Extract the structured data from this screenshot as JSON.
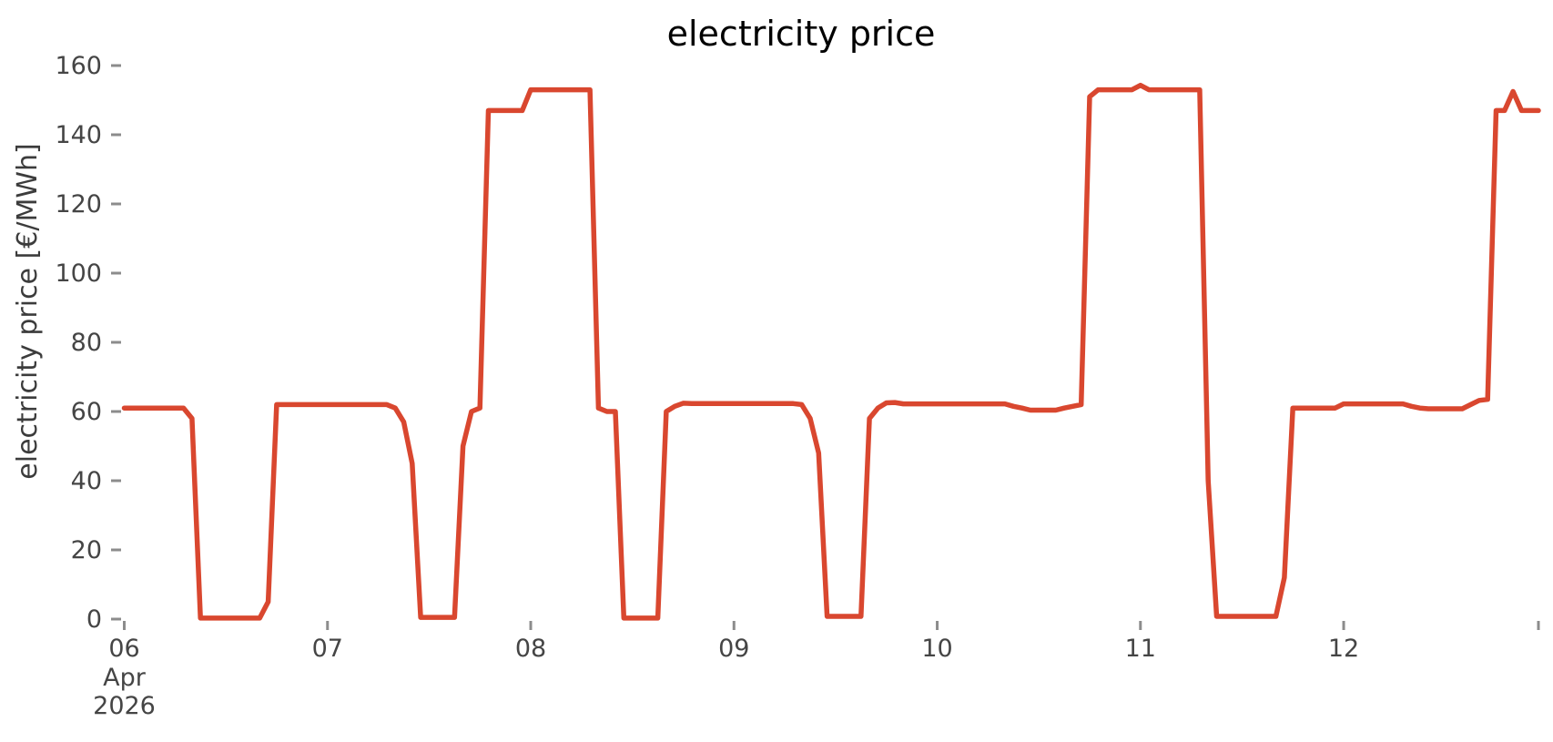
{
  "chart_data": {
    "type": "line",
    "title": "electricity price",
    "ylabel": "electricity price [€/MWh]",
    "xlabel": "",
    "grid": false,
    "legend": "none",
    "background": "#ffffff",
    "x_start": "2026-04-06T00:00",
    "x_freq": "1h",
    "n_points": 168,
    "x_axis": {
      "major_tick_hours": [
        0,
        24,
        48,
        72,
        96,
        120,
        144
      ],
      "major_tick_labels": [
        "06",
        "07",
        "08",
        "09",
        "10",
        "11",
        "12"
      ],
      "first_tick_sublabels": [
        "Apr",
        "2026"
      ],
      "end_tick_hour": 167,
      "end_tick_label": ""
    },
    "y_axis": {
      "ticks": [
        0,
        20,
        40,
        60,
        80,
        100,
        120,
        140,
        160
      ],
      "min": 0,
      "max": 160
    },
    "series": [
      {
        "name": "electricity price",
        "color": "#D9472F",
        "values": [
          61,
          61,
          61,
          61,
          61,
          61,
          61,
          61,
          58,
          0.3,
          0.3,
          0.3,
          0.3,
          0.3,
          0.3,
          0.3,
          0.3,
          5,
          62,
          62,
          62,
          62,
          62,
          62,
          62,
          62,
          62,
          62,
          62,
          62,
          62,
          62,
          61,
          57,
          45,
          0.5,
          0.5,
          0.5,
          0.5,
          0.5,
          50,
          60,
          61,
          147,
          147,
          147,
          147,
          147,
          153,
          153,
          153,
          153,
          153,
          153,
          153,
          153,
          61,
          60,
          60,
          0.3,
          0.3,
          0.3,
          0.3,
          0.3,
          60,
          61.5,
          62.4,
          62.3,
          62.3,
          62.3,
          62.3,
          62.3,
          62.3,
          62.3,
          62.3,
          62.3,
          62.3,
          62.3,
          62.3,
          62.3,
          62,
          58,
          48,
          0.8,
          0.8,
          0.8,
          0.8,
          0.8,
          58,
          61,
          62.5,
          62.6,
          62.2,
          62.2,
          62.2,
          62.2,
          62.2,
          62.2,
          62.2,
          62.2,
          62.2,
          62.2,
          62.2,
          62.2,
          62.2,
          61.5,
          61,
          60.4,
          60.4,
          60.4,
          60.4,
          61,
          61.5,
          62,
          151,
          153,
          153,
          153,
          153,
          153,
          154.3,
          153,
          153,
          153,
          153,
          153,
          153,
          153,
          40,
          0.8,
          0.8,
          0.8,
          0.8,
          0.8,
          0.8,
          0.8,
          0.8,
          12,
          61,
          61,
          61,
          61,
          61,
          61,
          62.2,
          62.2,
          62.2,
          62.2,
          62.2,
          62.2,
          62.2,
          62.2,
          61.5,
          61,
          60.8,
          60.8,
          60.8,
          60.8,
          60.8,
          62,
          63.2,
          63.5,
          147,
          147,
          152.5,
          147,
          147,
          147
        ]
      }
    ]
  }
}
